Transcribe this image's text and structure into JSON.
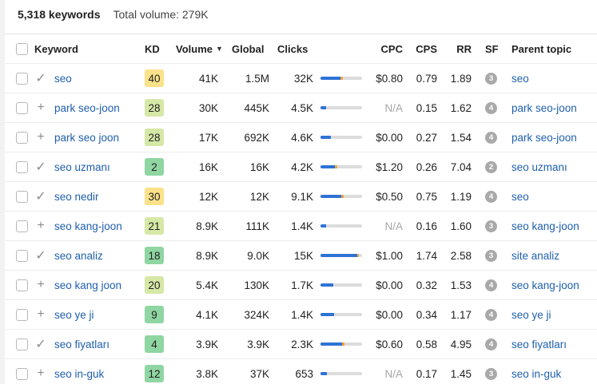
{
  "summary": {
    "keywords_count": "5,318 keywords",
    "total_volume": "Total volume: 279K"
  },
  "colors": {
    "link": "#1f5fae",
    "kd_yellow": "#fbe28a",
    "kd_lightgreen": "#d6e8a6",
    "kd_green": "#8fd6a2",
    "bar_blue": "#2d73d6",
    "bar_orange": "#f2a33a"
  },
  "headers": {
    "keyword": "Keyword",
    "kd": "KD",
    "volume": "Volume",
    "volume_sort_icon": "sort-desc-icon",
    "global": "Global",
    "clicks": "Clicks",
    "cpc": "CPC",
    "cps": "CPS",
    "rr": "RR",
    "sf": "SF",
    "parent": "Parent topic"
  },
  "rows": [
    {
      "action": "check-icon",
      "keyword": "seo",
      "kd": "40",
      "kd_color": "#fbe28a",
      "volume": "41K",
      "global": "1.5M",
      "clicks": "32K",
      "clicks_bar": {
        "paid": 0.0,
        "organic": 0.48,
        "other": 0.06
      },
      "cpc": "$0.80",
      "cpc_na": false,
      "cps": "0.79",
      "rr": "1.89",
      "sf": "3",
      "parent": "seo"
    },
    {
      "action": "plus-icon",
      "keyword": "park seo-joon",
      "kd": "28",
      "kd_color": "#d6e8a6",
      "volume": "30K",
      "global": "445K",
      "clicks": "4.5K",
      "clicks_bar": {
        "paid": 0.0,
        "organic": 0.14,
        "other": 0.0
      },
      "cpc": "N/A",
      "cpc_na": true,
      "cps": "0.15",
      "rr": "1.62",
      "sf": "4",
      "parent": "park seo-joon"
    },
    {
      "action": "plus-icon",
      "keyword": "park seo joon",
      "kd": "28",
      "kd_color": "#d6e8a6",
      "volume": "17K",
      "global": "692K",
      "clicks": "4.6K",
      "clicks_bar": {
        "paid": 0.0,
        "organic": 0.25,
        "other": 0.0
      },
      "cpc": "$0.00",
      "cpc_na": false,
      "cps": "0.27",
      "rr": "1.54",
      "sf": "4",
      "parent": "park seo-joon"
    },
    {
      "action": "check-icon",
      "keyword": "seo uzmanı",
      "kd": "2",
      "kd_color": "#8fd6a2",
      "volume": "16K",
      "global": "16K",
      "clicks": "4.2K",
      "clicks_bar": {
        "paid": 0.0,
        "organic": 0.34,
        "other": 0.06
      },
      "cpc": "$1.20",
      "cpc_na": false,
      "cps": "0.26",
      "rr": "7.04",
      "sf": "2",
      "parent": "seo uzmanı"
    },
    {
      "action": "check-icon",
      "keyword": "seo nedir",
      "kd": "30",
      "kd_color": "#fbe28a",
      "volume": "12K",
      "global": "12K",
      "clicks": "9.1K",
      "clicks_bar": {
        "paid": 0.0,
        "organic": 0.5,
        "other": 0.06
      },
      "cpc": "$0.50",
      "cpc_na": false,
      "cps": "0.75",
      "rr": "1.19",
      "sf": "4",
      "parent": "seo"
    },
    {
      "action": "plus-icon",
      "keyword": "seo kang-joon",
      "kd": "21",
      "kd_color": "#d6e8a6",
      "volume": "8.9K",
      "global": "111K",
      "clicks": "1.4K",
      "clicks_bar": {
        "paid": 0.0,
        "organic": 0.14,
        "other": 0.0
      },
      "cpc": "N/A",
      "cpc_na": true,
      "cps": "0.16",
      "rr": "1.60",
      "sf": "3",
      "parent": "seo kang-joon"
    },
    {
      "action": "check-icon",
      "keyword": "seo analiz",
      "kd": "18",
      "kd_color": "#8fd6a2",
      "volume": "8.9K",
      "global": "9.0K",
      "clicks": "15K",
      "clicks_bar": {
        "paid": 0.0,
        "organic": 0.88,
        "other": 0.04
      },
      "cpc": "$1.00",
      "cpc_na": false,
      "cps": "1.74",
      "rr": "2.58",
      "sf": "3",
      "parent": "site analiz"
    },
    {
      "action": "plus-icon",
      "keyword": "seo kang joon",
      "kd": "20",
      "kd_color": "#d6e8a6",
      "volume": "5.4K",
      "global": "130K",
      "clicks": "1.7K",
      "clicks_bar": {
        "paid": 0.0,
        "organic": 0.31,
        "other": 0.0
      },
      "cpc": "$0.00",
      "cpc_na": false,
      "cps": "0.32",
      "rr": "1.53",
      "sf": "4",
      "parent": "seo kang-joon"
    },
    {
      "action": "plus-icon",
      "keyword": "seo ye ji",
      "kd": "9",
      "kd_color": "#8fd6a2",
      "volume": "4.1K",
      "global": "324K",
      "clicks": "1.4K",
      "clicks_bar": {
        "paid": 0.0,
        "organic": 0.33,
        "other": 0.0
      },
      "cpc": "$0.00",
      "cpc_na": false,
      "cps": "0.34",
      "rr": "1.17",
      "sf": "4",
      "parent": "seo ye ji"
    },
    {
      "action": "check-icon",
      "keyword": "seo fiyatları",
      "kd": "4",
      "kd_color": "#8fd6a2",
      "volume": "3.9K",
      "global": "3.9K",
      "clicks": "2.3K",
      "clicks_bar": {
        "paid": 0.0,
        "organic": 0.52,
        "other": 0.06
      },
      "cpc": "$0.60",
      "cpc_na": false,
      "cps": "0.58",
      "rr": "4.95",
      "sf": "4",
      "parent": "seo fiyatları"
    },
    {
      "action": "plus-icon",
      "keyword": "seo in-guk",
      "kd": "12",
      "kd_color": "#8fd6a2",
      "volume": "3.8K",
      "global": "37K",
      "clicks": "653",
      "clicks_bar": {
        "paid": 0.0,
        "organic": 0.16,
        "other": 0.0
      },
      "cpc": "N/A",
      "cpc_na": true,
      "cps": "0.17",
      "rr": "1.45",
      "sf": "3",
      "parent": "seo in-guk"
    }
  ]
}
